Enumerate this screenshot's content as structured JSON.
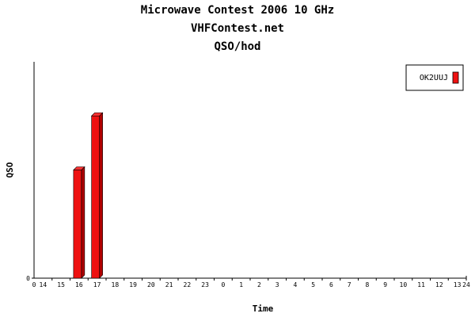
{
  "chart_data": {
    "type": "bar",
    "title": "Microwave Contest 2006 10 GHz",
    "subtitle": "VHFContest.net",
    "title3": "QSO/hod",
    "xlabel": "Time",
    "ylabel": "QSO",
    "y_tick_labels": [
      "0"
    ],
    "x_tick_labels": [
      "0",
      "14",
      "15",
      "16",
      "17",
      "18",
      "19",
      "20",
      "21",
      "22",
      "23",
      "0",
      "1",
      "2",
      "3",
      "4",
      "5",
      "6",
      "7",
      "8",
      "9",
      "10",
      "11",
      "12",
      "13",
      "24"
    ],
    "categories": [
      "14",
      "15",
      "16",
      "17",
      "18",
      "19",
      "20",
      "21",
      "22",
      "23",
      "0",
      "1",
      "2",
      "3",
      "4",
      "5",
      "6",
      "7",
      "8",
      "9",
      "10",
      "11",
      "12",
      "13"
    ],
    "series": [
      {
        "name": "OK2UUJ",
        "color": "#ee1111",
        "values": [
          0,
          0,
          6,
          9,
          0,
          0,
          0,
          0,
          0,
          0,
          0,
          0,
          0,
          0,
          0,
          0,
          0,
          0,
          0,
          0,
          0,
          0,
          0,
          0
        ]
      }
    ],
    "ylim": [
      0,
      12
    ],
    "grid": false,
    "legend": "top-right"
  }
}
